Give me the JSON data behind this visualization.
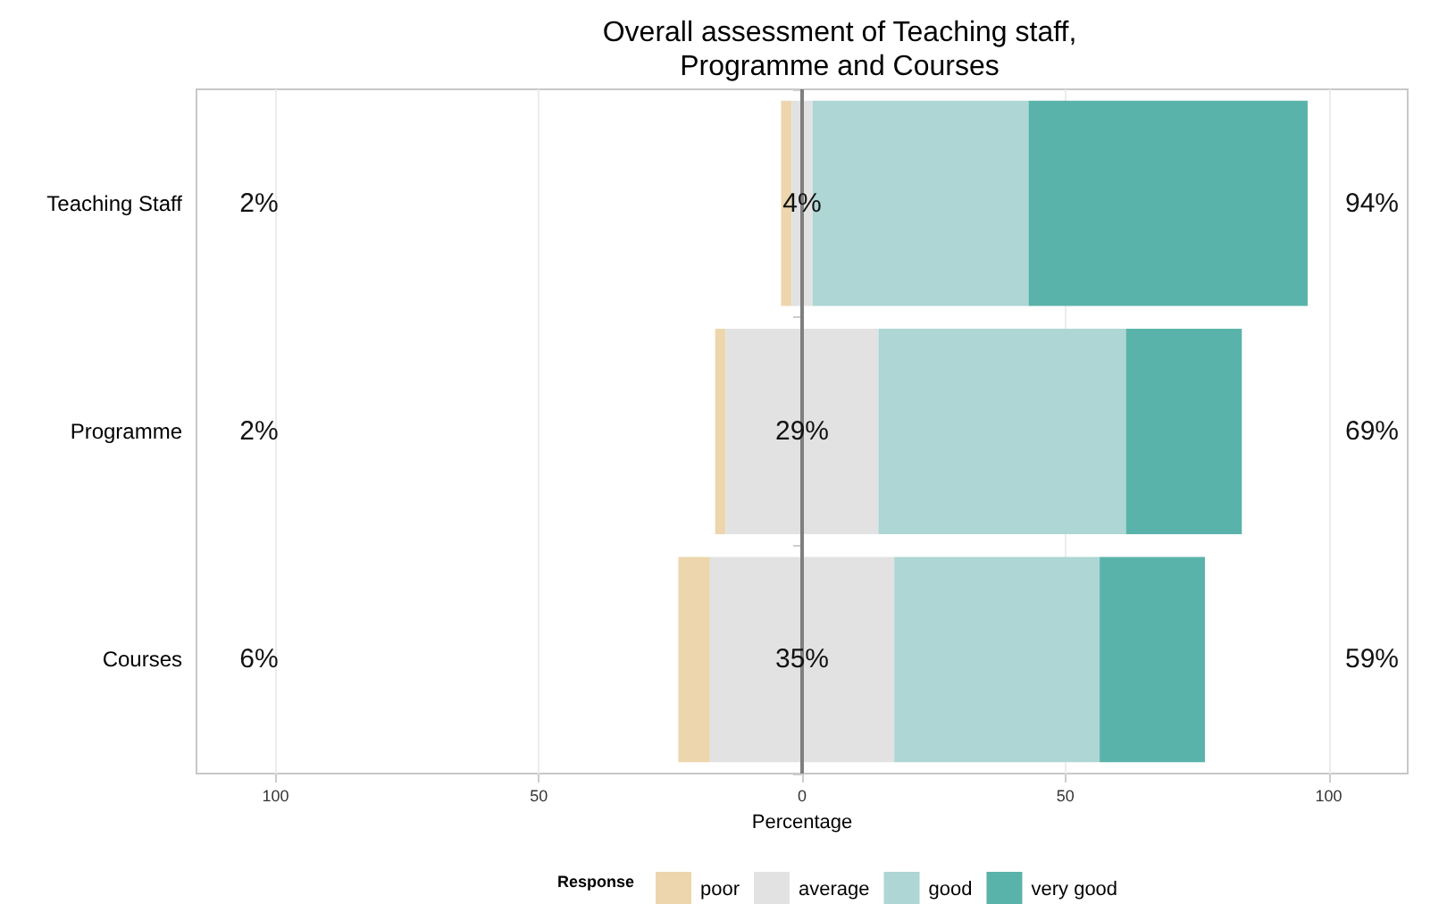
{
  "chart_data": {
    "type": "bar",
    "orientation": "horizontal",
    "title": "Overall assessment of Teaching staff,\nProgramme and Courses",
    "xlabel": "Percentage",
    "legend_title": "Response",
    "categories": [
      "Teaching Staff",
      "Programme",
      "Courses"
    ],
    "series": [
      {
        "name": "poor",
        "color": "#edd6ad",
        "base": [
          -4,
          -16.5,
          -23.5
        ],
        "values": [
          2,
          2,
          6
        ],
        "value_labels": [
          "2%",
          "2%",
          "6%"
        ]
      },
      {
        "name": "average",
        "color": "#e2e2e2",
        "base": [
          -2,
          -14.5,
          -17.5
        ],
        "values": [
          4,
          29,
          35
        ],
        "value_labels": [
          "4%",
          "29%",
          "35%"
        ]
      },
      {
        "name": "good",
        "color": "#add6d4",
        "base": [
          2,
          14.5,
          17.5
        ],
        "values": [
          41,
          47,
          39
        ]
      },
      {
        "name": "very good",
        "color": "#5ab3aa",
        "base": [
          43,
          61.5,
          56.5
        ],
        "values": [
          53,
          22,
          20
        ]
      }
    ],
    "xlim": [
      -115,
      115
    ],
    "xticks": [
      {
        "value": -100,
        "label": "100"
      },
      {
        "value": -50,
        "label": "50"
      },
      0,
      50,
      100
    ],
    "ref_lines": [
      {
        "axis": "x",
        "value": 0,
        "color": "#7f7f7f"
      }
    ],
    "annotations": [
      "94%",
      "69%",
      "59%"
    ],
    "grid": "x",
    "legend": "bottom"
  }
}
